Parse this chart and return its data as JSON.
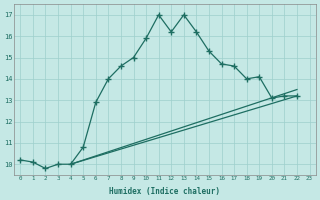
{
  "xlabel": "Humidex (Indice chaleur)",
  "bg_color": "#c5e8e5",
  "grid_color": "#9ecfcc",
  "line_color": "#1e6e62",
  "line1_x": [
    0,
    1,
    2,
    3,
    4,
    5,
    6,
    7,
    8,
    9,
    10,
    11,
    12,
    13,
    14,
    15,
    16,
    17,
    18,
    19,
    20,
    21,
    22
  ],
  "line1_y": [
    10.2,
    10.1,
    9.8,
    10.0,
    10.0,
    10.8,
    12.9,
    14.0,
    14.6,
    15.0,
    15.9,
    17.0,
    16.2,
    17.0,
    16.2,
    15.3,
    14.7,
    14.6,
    14.0,
    14.1,
    13.1,
    13.2,
    13.2
  ],
  "line2_x": [
    4,
    22
  ],
  "line2_y": [
    10.0,
    13.2
  ],
  "line3_x": [
    4,
    22
  ],
  "line3_y": [
    10.0,
    13.5
  ],
  "xlim_min": -0.5,
  "xlim_max": 23.5,
  "ylim_min": 9.5,
  "ylim_max": 17.5,
  "yticks": [
    10,
    11,
    12,
    13,
    14,
    15,
    16,
    17
  ],
  "xticks": [
    0,
    1,
    2,
    3,
    4,
    5,
    6,
    7,
    8,
    9,
    10,
    11,
    12,
    13,
    14,
    15,
    16,
    17,
    18,
    19,
    20,
    21,
    22,
    23
  ],
  "xtick_labels": [
    "0",
    "1",
    "2",
    "3",
    "4",
    "5",
    "6",
    "7",
    "8",
    "9",
    "10",
    "11",
    "12",
    "13",
    "14",
    "15",
    "16",
    "17",
    "18",
    "19",
    "20",
    "21",
    "22",
    "23"
  ]
}
